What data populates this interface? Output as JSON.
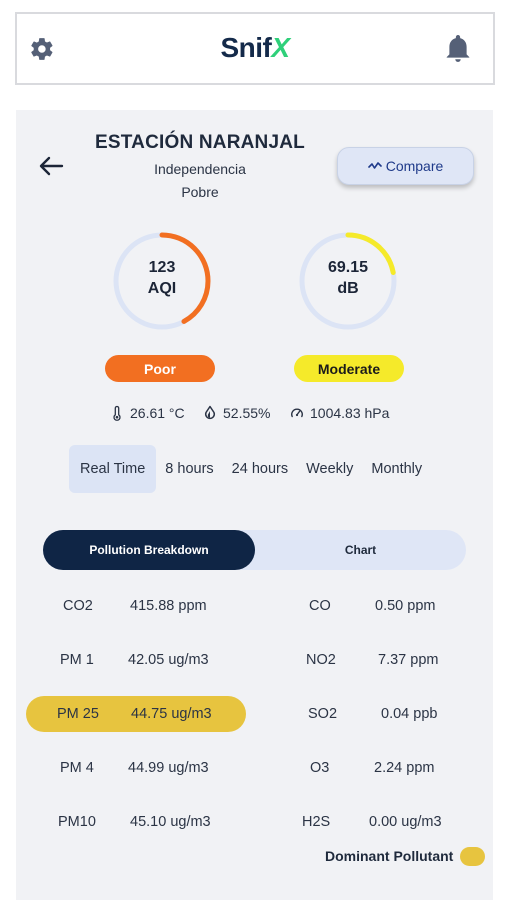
{
  "header": {
    "logo_main": "Snif",
    "logo_accent": "X",
    "settings_icon": "gear-icon",
    "notifications_icon": "bell-icon"
  },
  "station": {
    "name": "ESTACIÓN NARANJAL",
    "location": "Independencia",
    "status": "Pobre"
  },
  "compare_button": {
    "label": "Compare",
    "icon": "trend-icon"
  },
  "gauges": {
    "aqi": {
      "value": "123",
      "unit": "AQI",
      "fill_fraction": 0.42,
      "color": "#f26f21",
      "status": "Poor"
    },
    "noise": {
      "value": "69.15",
      "unit": "dB",
      "fill_fraction": 0.22,
      "color": "#f5ea2a",
      "status": "Moderate"
    }
  },
  "weather": {
    "temperature": "26.61 °C",
    "humidity": "52.55%",
    "pressure": "1004.83 hPa"
  },
  "time_tabs": [
    {
      "label": "Real Time",
      "active": true
    },
    {
      "label": "8 hours",
      "active": false
    },
    {
      "label": "24 hours",
      "active": false
    },
    {
      "label": "Weekly",
      "active": false
    },
    {
      "label": "Monthly",
      "active": false
    }
  ],
  "segment": {
    "left_label": "Pollution Breakdown",
    "right_label": "Chart",
    "active": "left"
  },
  "pollutants_left": [
    {
      "name": "CO2",
      "value": "415.88 ppm"
    },
    {
      "name": "PM 1",
      "value": "42.05 ug/m3"
    },
    {
      "name": "PM 25",
      "value": "44.75 ug/m3",
      "dominant": true
    },
    {
      "name": "PM 4",
      "value": "44.99 ug/m3"
    },
    {
      "name": "PM10",
      "value": "45.10 ug/m3"
    }
  ],
  "pollutants_right": [
    {
      "name": "CO",
      "value": "0.50 ppm"
    },
    {
      "name": "NO2",
      "value": "7.37 ppm"
    },
    {
      "name": "SO2",
      "value": "0.04 ppb"
    },
    {
      "name": "O3",
      "value": "2.24 ppm"
    },
    {
      "name": "H2S",
      "value": "0.00 ug/m3"
    }
  ],
  "legend": {
    "label": "Dominant Pollutant",
    "color": "#e7c43f"
  }
}
